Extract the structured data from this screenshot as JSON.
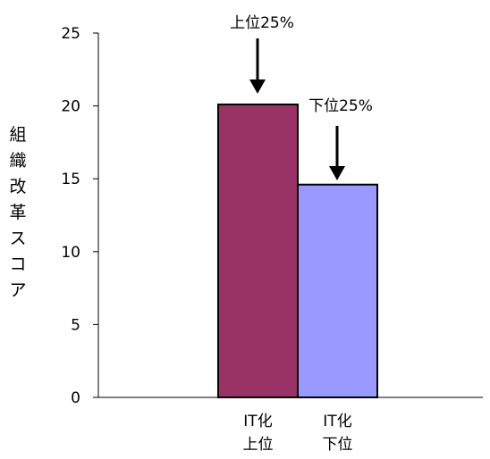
{
  "chart_data": {
    "type": "bar",
    "title": "",
    "xlabel": "",
    "ylabel": "組織改革スコア",
    "ylim": [
      0,
      25
    ],
    "yticks": [
      0,
      5,
      10,
      15,
      20,
      25
    ],
    "grid": false,
    "categories": [
      "IT化\n上位",
      "IT化\n下位"
    ],
    "values": [
      20.1,
      14.6
    ],
    "colors": [
      "#993366",
      "#9999ff"
    ],
    "annotations": [
      "上位25%",
      "下位25%"
    ]
  }
}
